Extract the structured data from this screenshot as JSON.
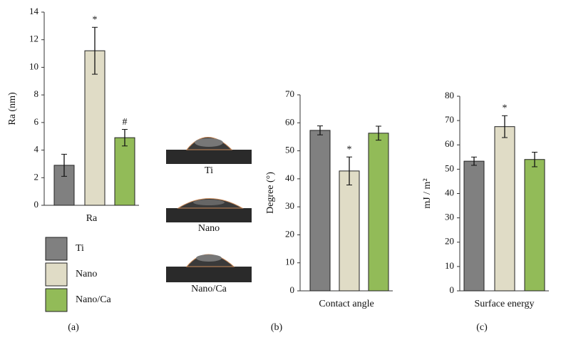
{
  "chart_data": [
    {
      "type": "bar",
      "panel_label": "(a)",
      "y_label": "Ra (nm)",
      "categories": [
        "Ra"
      ],
      "ylim": [
        0,
        14
      ],
      "yticks": [
        0,
        2,
        4,
        6,
        8,
        10,
        12,
        14
      ],
      "grid": false,
      "legend": "below",
      "series": [
        {
          "name": "Ti",
          "color": "#808080",
          "values": [
            2.9
          ],
          "errors": [
            0.8
          ]
        },
        {
          "name": "Nano",
          "color": "#e0dcc6",
          "values": [
            11.2
          ],
          "errors": [
            1.7
          ],
          "annotation": "*"
        },
        {
          "name": "Nano/Ca",
          "color": "#92bb58",
          "values": [
            4.9
          ],
          "errors": [
            0.6
          ],
          "annotation": "#"
        }
      ]
    },
    {
      "type": "bar",
      "panel_label": "(b)",
      "y_label": "Degree (°)",
      "categories": [
        "Contact angle"
      ],
      "ylim": [
        0,
        70
      ],
      "yticks": [
        0,
        10,
        20,
        30,
        40,
        50,
        60,
        70
      ],
      "grid": false,
      "images": [
        "Ti",
        "Nano",
        "Nano/Ca"
      ],
      "series": [
        {
          "name": "Ti",
          "color": "#808080",
          "values": [
            57.3
          ],
          "errors": [
            1.6
          ]
        },
        {
          "name": "Nano",
          "color": "#e0dcc6",
          "values": [
            42.8
          ],
          "errors": [
            5.0
          ],
          "annotation": "*"
        },
        {
          "name": "Nano/Ca",
          "color": "#92bb58",
          "values": [
            56.3
          ],
          "errors": [
            2.5
          ]
        }
      ]
    },
    {
      "type": "bar",
      "panel_label": "(c)",
      "y_label": "mJ / m²",
      "categories": [
        "Surface energy"
      ],
      "ylim": [
        0,
        80
      ],
      "yticks": [
        0,
        10,
        20,
        30,
        40,
        50,
        60,
        70,
        80
      ],
      "grid": false,
      "series": [
        {
          "name": "Ti",
          "color": "#808080",
          "values": [
            53.3
          ],
          "errors": [
            1.7
          ]
        },
        {
          "name": "Nano",
          "color": "#e0dcc6",
          "values": [
            67.5
          ],
          "errors": [
            4.5
          ],
          "annotation": "*"
        },
        {
          "name": "Nano/Ca",
          "color": "#92bb58",
          "values": [
            54.0
          ],
          "errors": [
            3.0
          ]
        }
      ]
    }
  ]
}
